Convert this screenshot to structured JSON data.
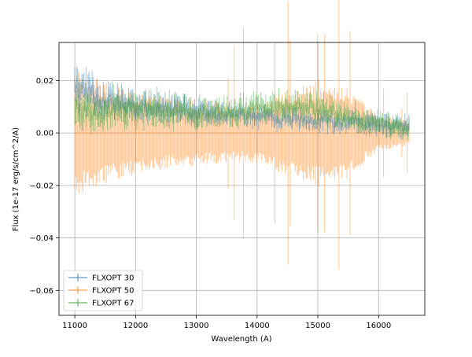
{
  "chart_data": {
    "type": "line",
    "title": "",
    "xlabel": "Wavelength (A)",
    "ylabel": "Flux (1e-17 erg/s/cm^2/A)",
    "xlim": [
      10740,
      16760
    ],
    "ylim": [
      -0.0695,
      0.0345
    ],
    "x_ticks": [
      11000,
      12000,
      13000,
      14000,
      15000,
      16000
    ],
    "x_tick_labels": [
      "11000",
      "12000",
      "13000",
      "14000",
      "15000",
      "16000"
    ],
    "y_ticks": [
      0.02,
      0.0,
      -0.02,
      -0.04,
      -0.06
    ],
    "y_tick_labels": [
      "0.02",
      "0.00",
      "−0.02",
      "−0.04",
      "−0.06"
    ],
    "grid": true,
    "legend_position": "lower-left",
    "series": [
      {
        "name": "FLXOPT 30",
        "color": "#1f77b4",
        "x": [
          11000,
          11500,
          12000,
          12500,
          13000,
          13500,
          14000,
          14500,
          15000,
          15500,
          16000,
          16500
        ],
        "y": [
          0.018,
          0.012,
          0.01,
          0.009,
          0.008,
          0.007,
          0.006,
          0.0055,
          0.005,
          0.004,
          0.003,
          0.0025
        ],
        "err": [
          0.006,
          0.005,
          0.004,
          0.004,
          0.004,
          0.003,
          0.003,
          0.003,
          0.003,
          0.003,
          0.003,
          0.003
        ]
      },
      {
        "name": "FLXOPT 50",
        "color": "#ff7f0e",
        "x": [
          11000,
          11500,
          12000,
          12500,
          13000,
          13500,
          14000,
          14500,
          15000,
          15500,
          16000,
          16500
        ],
        "y": [
          0.0,
          0.0,
          0.0,
          0.0,
          0.0,
          0.0,
          0.0,
          0.0,
          0.0,
          0.0,
          0.0,
          0.0
        ],
        "err": [
          0.022,
          0.017,
          0.014,
          0.012,
          0.011,
          0.01,
          0.01,
          0.014,
          0.018,
          0.015,
          0.006,
          0.004
        ]
      },
      {
        "name": "FLXOPT 67",
        "color": "#2ca02c",
        "x": [
          11000,
          11500,
          12000,
          12500,
          13000,
          13500,
          14000,
          14500,
          15000,
          15500,
          16000,
          16500
        ],
        "y": [
          0.008,
          0.009,
          0.01,
          0.009,
          0.008,
          0.008,
          0.009,
          0.01,
          0.009,
          0.007,
          0.004,
          0.001
        ],
        "err": [
          0.006,
          0.005,
          0.005,
          0.005,
          0.004,
          0.004,
          0.004,
          0.004,
          0.004,
          0.004,
          0.003,
          0.003
        ]
      }
    ]
  }
}
